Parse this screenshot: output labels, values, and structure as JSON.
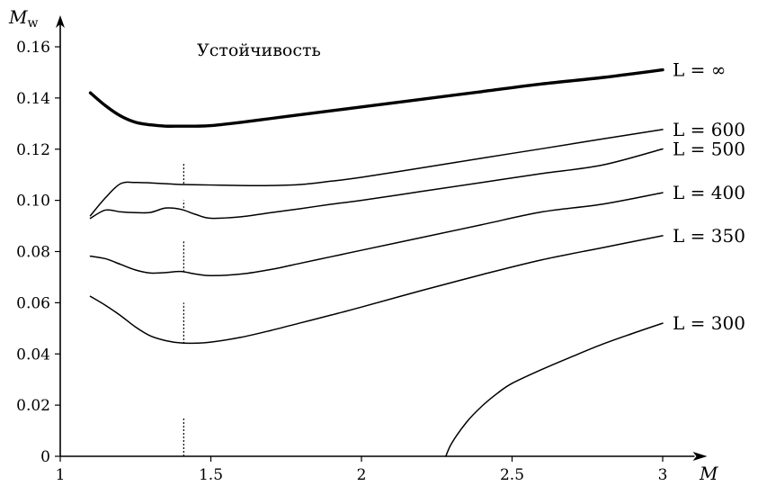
{
  "chart_data": {
    "type": "line",
    "title": "",
    "annotation": "Устойчивость",
    "xlabel": "M",
    "ylabel": "M_w",
    "ylabel_parts": {
      "main": "M",
      "sub": "w"
    },
    "xlim": [
      1,
      3.1
    ],
    "ylim": [
      0,
      0.166
    ],
    "x_ticks": [
      1,
      1.5,
      2,
      2.5,
      3
    ],
    "x_tick_labels": [
      "1",
      "1.5",
      "2",
      "2.5",
      "3"
    ],
    "y_ticks": [
      0,
      0.02,
      0.04,
      0.06,
      0.08,
      0.1,
      0.12,
      0.14,
      0.16
    ],
    "y_tick_labels": [
      "0",
      "0.02",
      "0.04",
      "0.06",
      "0.08",
      "0.10",
      "0.12",
      "0.14",
      "0.16"
    ],
    "grid": false,
    "legend": "inline labels at right end of curves",
    "series": [
      {
        "name": "L = ∞",
        "bold": true,
        "x": [
          1.1,
          1.15,
          1.2,
          1.25,
          1.3,
          1.35,
          1.4,
          1.45,
          1.5,
          1.6,
          1.7,
          1.8,
          1.9,
          2.0,
          2.2,
          2.4,
          2.6,
          2.8,
          3.0
        ],
        "y": [
          0.142,
          0.137,
          0.133,
          0.1305,
          0.1295,
          0.129,
          0.129,
          0.129,
          0.1292,
          0.1305,
          0.132,
          0.1335,
          0.135,
          0.1365,
          0.1395,
          0.1425,
          0.1455,
          0.148,
          0.151
        ]
      },
      {
        "name": "L = 600",
        "x": [
          1.1,
          1.15,
          1.2,
          1.25,
          1.3,
          1.35,
          1.4,
          1.5,
          1.6,
          1.7,
          1.8,
          1.9,
          2.0,
          2.2,
          2.4,
          2.6,
          2.8,
          3.0
        ],
        "y": [
          0.094,
          0.101,
          0.1065,
          0.107,
          0.1068,
          0.1065,
          0.1062,
          0.106,
          0.1058,
          0.1058,
          0.1062,
          0.1075,
          0.109,
          0.1127,
          0.1165,
          0.1202,
          0.124,
          0.1277
        ]
      },
      {
        "name": "L = 500",
        "x": [
          1.1,
          1.15,
          1.2,
          1.25,
          1.3,
          1.35,
          1.4,
          1.45,
          1.5,
          1.6,
          1.7,
          1.8,
          1.9,
          2.0,
          2.2,
          2.4,
          2.6,
          2.8,
          3.0
        ],
        "y": [
          0.093,
          0.0962,
          0.0955,
          0.0952,
          0.0953,
          0.097,
          0.0965,
          0.0945,
          0.093,
          0.0936,
          0.0952,
          0.0968,
          0.0985,
          0.1,
          0.1035,
          0.107,
          0.1105,
          0.1138,
          0.1201
        ]
      },
      {
        "name": "L = 400",
        "x": [
          1.1,
          1.15,
          1.2,
          1.25,
          1.3,
          1.35,
          1.4,
          1.45,
          1.5,
          1.6,
          1.7,
          1.8,
          1.9,
          2.0,
          2.2,
          2.4,
          2.6,
          2.8,
          3.0
        ],
        "y": [
          0.0782,
          0.0772,
          0.075,
          0.0728,
          0.0716,
          0.0718,
          0.0722,
          0.0712,
          0.0706,
          0.0712,
          0.073,
          0.0755,
          0.078,
          0.0805,
          0.0855,
          0.0905,
          0.0955,
          0.0985,
          0.103
        ]
      },
      {
        "name": "L = 350",
        "x": [
          1.1,
          1.15,
          1.2,
          1.25,
          1.3,
          1.35,
          1.4,
          1.45,
          1.5,
          1.6,
          1.7,
          1.8,
          1.9,
          2.0,
          2.2,
          2.4,
          2.6,
          2.8,
          3.0
        ],
        "y": [
          0.0625,
          0.059,
          0.055,
          0.0505,
          0.047,
          0.0452,
          0.0443,
          0.0442,
          0.0446,
          0.0465,
          0.0492,
          0.0522,
          0.0552,
          0.0583,
          0.0648,
          0.071,
          0.0768,
          0.0815,
          0.0862
        ]
      },
      {
        "name": "L = 300",
        "x": [
          2.28,
          2.3,
          2.35,
          2.4,
          2.45,
          2.5,
          2.6,
          2.7,
          2.8,
          2.9,
          3.0
        ],
        "y": [
          0.0,
          0.0052,
          0.0135,
          0.0196,
          0.0245,
          0.0285,
          0.034,
          0.039,
          0.0438,
          0.048,
          0.052
        ]
      }
    ],
    "reference_lines": [
      {
        "x": 1.41,
        "style": "dotted",
        "y_segments": [
          [
            0.0,
            0.015
          ],
          [
            0.044,
            0.06
          ],
          [
            0.072,
            0.084
          ],
          [
            0.097,
            0.1
          ],
          [
            0.1065,
            0.1145
          ]
        ]
      }
    ]
  }
}
